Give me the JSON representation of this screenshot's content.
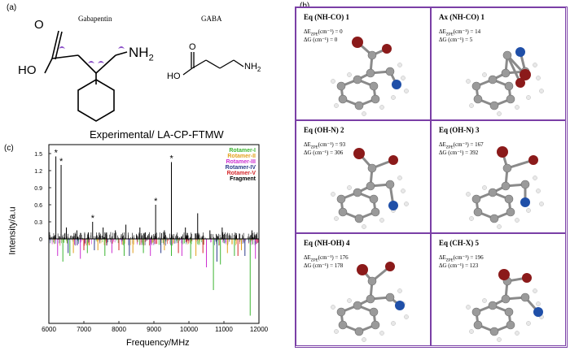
{
  "panel_a": {
    "label": "(a)",
    "gabapentin_name": "Gabapentin",
    "gaba_name": "GABA",
    "nh2": "NH",
    "nh2_sub": "2",
    "ho": "HO"
  },
  "panel_b": {
    "label": "(b)",
    "conformers": [
      {
        "title": "Eq (NH-CO) 1",
        "e_label": "ΔE",
        "e_sub": "ZPE",
        "e_value": "(cm⁻¹) = 0",
        "g_line": "ΔG (cm⁻¹) = 0"
      },
      {
        "title": "Ax (NH-CO) 1",
        "e_label": "ΔE",
        "e_sub": "ZPE",
        "e_value": "(cm⁻¹) = 14",
        "g_line": "ΔG (cm⁻¹) = 5"
      },
      {
        "title": "Eq (OH-N) 2",
        "e_label": "ΔE",
        "e_sub": "ZPE",
        "e_value": "(cm⁻¹) = 93",
        "g_line": "ΔG (cm⁻¹) = 306"
      },
      {
        "title": "Eq (OH-N) 3",
        "e_label": "ΔE",
        "e_sub": "ZPE",
        "e_value": "(cm⁻¹) = 167",
        "g_line": "ΔG (cm⁻¹) = 392"
      },
      {
        "title": "Eq (NH-OH) 4",
        "e_label": "ΔE",
        "e_sub": "ZPE",
        "e_value": "(cm⁻¹) = 176",
        "g_line": "ΔG (cm⁻¹) = 178"
      },
      {
        "title": "Eq (CH-X) 5",
        "e_label": "ΔE",
        "e_sub": "ZPE",
        "e_value": "(cm⁻¹) = 196",
        "g_line": "ΔG (cm⁻¹) = 123"
      }
    ]
  },
  "panel_c": {
    "label": "(c)"
  },
  "colors": {
    "border": "#7a3fa6",
    "rotamer_i": "#3cb531",
    "rotamer_ii": "#e3a01c",
    "rotamer_iii": "#cc2fd0",
    "rotamer_iv": "#2c3b8a",
    "rotamer_v": "#d4262a",
    "fragment": "#000000",
    "oxygen": "#8b1a1a",
    "nitrogen": "#1f4fa8",
    "carbon": "#9a9a9a"
  },
  "chart_data": {
    "type": "bar",
    "title": "Experimental/ LA-CP-FTMW",
    "xlabel": "Frequency/MHz",
    "ylabel": "Intensity/a.u",
    "xlim": [
      6000,
      12000
    ],
    "ylim": [
      -1.6,
      1.6
    ],
    "x_ticks": [
      "6000",
      "7000",
      "8000",
      "9000",
      "10000",
      "11000",
      "12000"
    ],
    "y_ticks": [
      "0",
      "0.3",
      "0.6",
      "0.9",
      "1.2",
      "1.5"
    ],
    "legend_position": "top-right",
    "series": [
      {
        "name": "Rotamer-I",
        "color": "#3cb531",
        "sign": -1,
        "x": [
          6400,
          6600,
          7100,
          7600,
          8150,
          8700,
          9500,
          10050,
          10700,
          10900,
          11300,
          11750
        ],
        "values": [
          0.4,
          0.3,
          0.25,
          0.3,
          0.3,
          0.25,
          0.3,
          0.35,
          0.9,
          0.45,
          0.3,
          1.35
        ]
      },
      {
        "name": "Rotamer-II",
        "color": "#e3a01c",
        "sign": -1,
        "x": [
          6700,
          7400,
          8400,
          9300,
          10200,
          11100,
          11500
        ],
        "values": [
          0.25,
          0.2,
          0.25,
          0.2,
          0.3,
          0.25,
          0.2
        ]
      },
      {
        "name": "Rotamer-III",
        "color": "#cc2fd0",
        "sign": -1,
        "x": [
          6250,
          6900,
          7800,
          8900,
          9800,
          10500,
          11900
        ],
        "values": [
          0.3,
          0.35,
          0.25,
          0.3,
          0.3,
          0.5,
          0.35
        ]
      },
      {
        "name": "Rotamer-IV",
        "color": "#2c3b8a",
        "sign": -1,
        "x": [
          6550,
          7300,
          8300,
          9200,
          10800,
          11600
        ],
        "values": [
          0.25,
          0.2,
          0.3,
          0.25,
          0.4,
          0.3
        ]
      },
      {
        "name": "Rotamer-V",
        "color": "#d4262a",
        "sign": -1,
        "x": [
          7000,
          8000,
          9700,
          10400,
          11400
        ],
        "values": [
          0.2,
          0.2,
          0.25,
          0.25,
          0.3
        ]
      },
      {
        "name": "Fragment",
        "color": "#000000",
        "sign": 1,
        "x": [
          6200,
          6350,
          6500,
          6800,
          7250,
          7550,
          7900,
          8200,
          8600,
          9050,
          9300,
          9500,
          9900,
          10250,
          10600,
          10950,
          11350,
          11800
        ],
        "values": [
          1.45,
          1.3,
          0.2,
          0.15,
          0.3,
          0.2,
          0.15,
          0.25,
          0.2,
          0.6,
          0.15,
          1.35,
          0.2,
          0.45,
          0.15,
          0.2,
          0.1,
          0.15
        ]
      }
    ],
    "annotations": [
      {
        "text": "*",
        "x": 6200,
        "y": 1.45
      },
      {
        "text": "*",
        "x": 6350,
        "y": 1.3
      },
      {
        "text": "*",
        "x": 7250,
        "y": 0.3
      },
      {
        "text": "*",
        "x": 9050,
        "y": 0.6
      },
      {
        "text": "*",
        "x": 9500,
        "y": 1.35
      }
    ]
  }
}
